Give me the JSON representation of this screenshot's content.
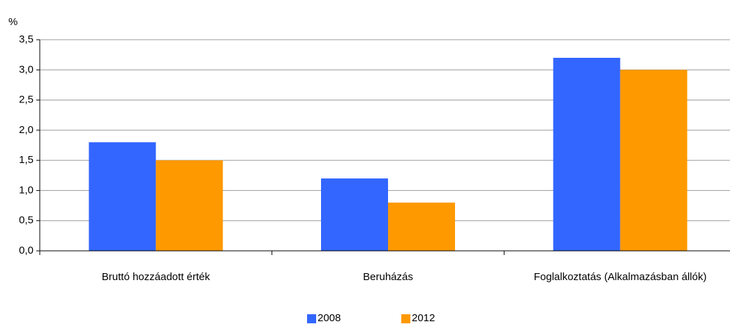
{
  "chart_data": {
    "type": "bar",
    "y_axis_label": "%",
    "categories": [
      "Bruttó hozzáadott érték",
      "Beruházás",
      "Foglalkoztatás (Alkalmazásban állók)"
    ],
    "series": [
      {
        "name": "2008",
        "color": "#3366ff",
        "values": [
          1.8,
          1.2,
          3.2
        ]
      },
      {
        "name": "2012",
        "color": "#ff9900",
        "values": [
          1.5,
          0.8,
          3.0
        ]
      }
    ],
    "ylim": [
      0,
      3.5
    ],
    "yticks": [
      {
        "value": 0,
        "label": "0,0"
      },
      {
        "value": 0.5,
        "label": "0,5"
      },
      {
        "value": 1,
        "label": "1,0"
      },
      {
        "value": 1.5,
        "label": "1,5"
      },
      {
        "value": 2,
        "label": "2,0"
      },
      {
        "value": 2.5,
        "label": "2,5"
      },
      {
        "value": 3,
        "label": "3,0"
      },
      {
        "value": 3.5,
        "label": "3,5"
      }
    ],
    "grid": true,
    "legend": "bottom"
  }
}
